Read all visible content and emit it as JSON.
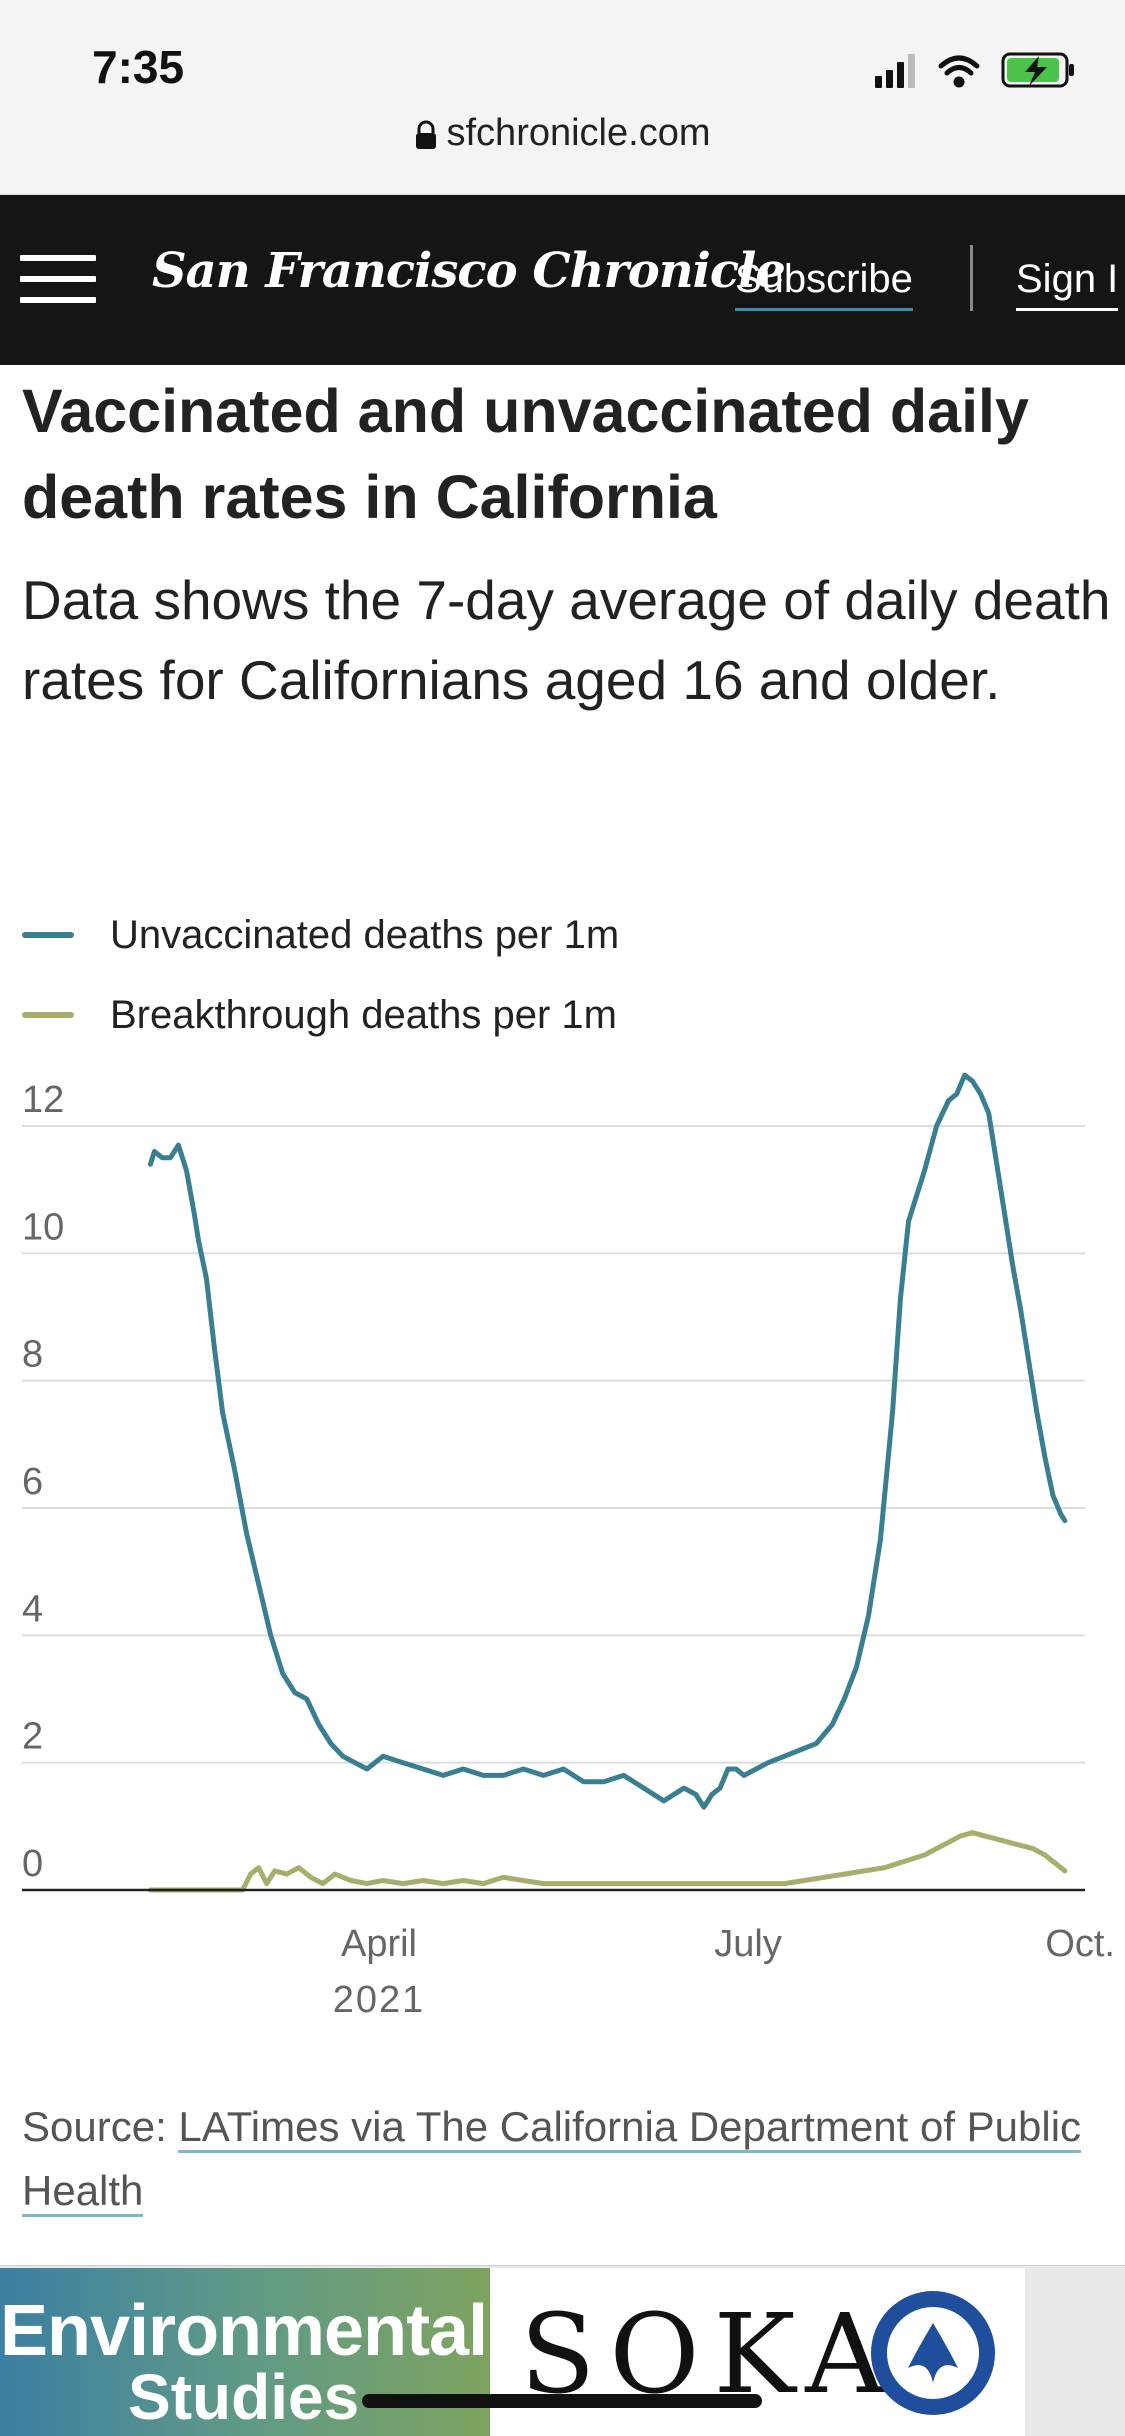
{
  "status": {
    "time": "7:35"
  },
  "browser": {
    "url": "sfchronicle.com"
  },
  "nav": {
    "masthead": "San Francisco Chronicle",
    "subscribe": "Subscribe",
    "sign_in": "Sign I"
  },
  "article": {
    "title": "Vaccinated and unvaccinated daily death rates in California",
    "subtitle": "Data shows the 7-day average of daily death rates for Californians aged 16 and older.",
    "source_prefix": "Source: ",
    "source_link": "LATimes via The California Department of Public Health"
  },
  "colors": {
    "unvaccinated": "#3a7f91",
    "breakthrough": "#a8ad6b",
    "grid": "#dddddd",
    "axis": "#222222"
  },
  "chart_data": {
    "type": "line",
    "title": "Vaccinated and unvaccinated daily death rates in California",
    "ylim": [
      0,
      12
    ],
    "yticks": [
      "0",
      "2",
      "4",
      "6",
      "8",
      "10",
      "12"
    ],
    "xlim": [
      0,
      265
    ],
    "xticks": [
      {
        "value": 89,
        "label": "April",
        "sublabel": "2021"
      },
      {
        "value": 181,
        "label": "July",
        "sublabel": ""
      },
      {
        "value": 265,
        "label": "Oct.",
        "sublabel": ""
      }
    ],
    "grid": true,
    "legend_position": "top-left",
    "series": [
      {
        "name": "Unvaccinated deaths per 1m",
        "key": "unvaccinated",
        "x": [
          32,
          33,
          35,
          37,
          39,
          41,
          43,
          44,
          46,
          48,
          50,
          53,
          56,
          59,
          62,
          65,
          68,
          71,
          74,
          77,
          80,
          83,
          86,
          90,
          95,
          100,
          105,
          110,
          115,
          120,
          125,
          130,
          135,
          140,
          145,
          150,
          155,
          160,
          165,
          168,
          170,
          172,
          174,
          176,
          178,
          180,
          183,
          186,
          190,
          194,
          198,
          202,
          205,
          208,
          211,
          214,
          217,
          219,
          221,
          223,
          225,
          228,
          231,
          233,
          235,
          237,
          239,
          241,
          243,
          245,
          247,
          249,
          251,
          253,
          255,
          257,
          259,
          260
        ],
        "y": [
          11.4,
          11.6,
          11.5,
          11.5,
          11.7,
          11.3,
          10.6,
          10.2,
          9.6,
          8.5,
          7.5,
          6.6,
          5.6,
          4.8,
          4.0,
          3.4,
          3.1,
          3.0,
          2.6,
          2.3,
          2.1,
          2.0,
          1.9,
          2.1,
          2.0,
          1.9,
          1.8,
          1.9,
          1.8,
          1.8,
          1.9,
          1.8,
          1.9,
          1.7,
          1.7,
          1.8,
          1.6,
          1.4,
          1.6,
          1.5,
          1.3,
          1.5,
          1.6,
          1.9,
          1.9,
          1.8,
          1.9,
          2.0,
          2.1,
          2.2,
          2.3,
          2.6,
          3.0,
          3.5,
          4.3,
          5.5,
          7.5,
          9.3,
          10.5,
          10.9,
          11.3,
          12.0,
          12.4,
          12.5,
          12.8,
          12.7,
          12.5,
          12.2,
          11.4,
          10.6,
          9.8,
          9.1,
          8.3,
          7.5,
          6.8,
          6.2,
          5.9,
          5.8
        ]
      },
      {
        "name": "Breakthrough deaths per 1m",
        "key": "breakthrough",
        "x": [
          32,
          40,
          50,
          55,
          57,
          59,
          61,
          63,
          66,
          69,
          72,
          75,
          78,
          82,
          86,
          90,
          95,
          100,
          105,
          110,
          115,
          120,
          125,
          130,
          135,
          140,
          145,
          150,
          155,
          160,
          165,
          170,
          175,
          180,
          185,
          190,
          195,
          200,
          205,
          210,
          215,
          220,
          225,
          228,
          231,
          234,
          237,
          240,
          243,
          246,
          249,
          252,
          255,
          258,
          260
        ],
        "y": [
          0.0,
          0.0,
          0.0,
          0.0,
          0.25,
          0.35,
          0.1,
          0.3,
          0.25,
          0.35,
          0.2,
          0.1,
          0.25,
          0.15,
          0.1,
          0.15,
          0.1,
          0.15,
          0.1,
          0.15,
          0.1,
          0.2,
          0.15,
          0.1,
          0.1,
          0.1,
          0.1,
          0.1,
          0.1,
          0.1,
          0.1,
          0.1,
          0.1,
          0.1,
          0.1,
          0.1,
          0.15,
          0.2,
          0.25,
          0.3,
          0.35,
          0.45,
          0.55,
          0.65,
          0.75,
          0.85,
          0.9,
          0.85,
          0.8,
          0.75,
          0.7,
          0.65,
          0.55,
          0.4,
          0.3
        ]
      }
    ]
  },
  "ad": {
    "left_line1": "Environmental",
    "left_line2": "Studies",
    "right_word": "SOKA"
  }
}
